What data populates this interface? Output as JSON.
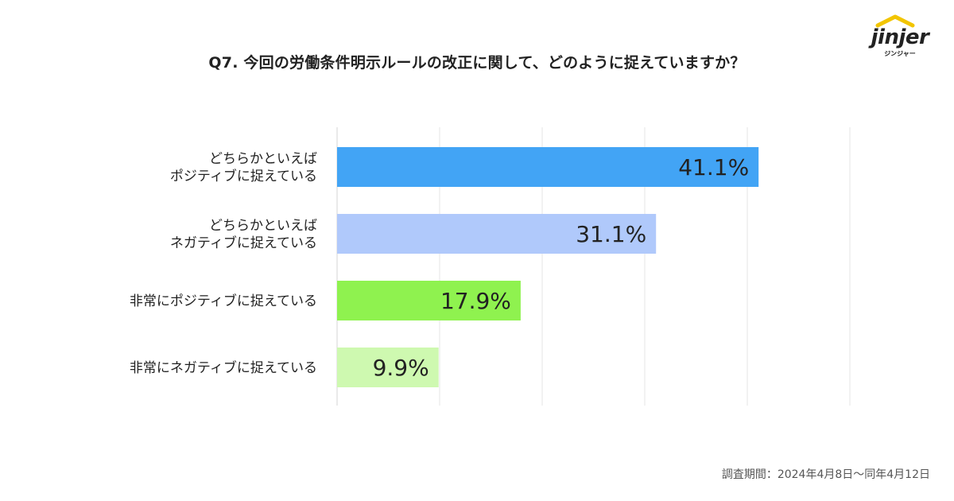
{
  "title": "Q7. 今回の労働条件明示ルールの改正に関して、どのように捉えていますか？",
  "logo": {
    "name": "jinjer",
    "sub": "ジンジャー"
  },
  "footer": "調査期間：2024年4月8日〜同年4月12日",
  "chart_data": {
    "type": "bar",
    "orientation": "horizontal",
    "title": "Q7. 今回の労働条件明示ルールの改正に関して、どのように捉えていますか？",
    "categories": [
      [
        "どちらかといえば",
        "ポジティブに捉えている"
      ],
      [
        "どちらかといえば",
        "ネガティブに捉えている"
      ],
      [
        "非常にポジティブに捉えている"
      ],
      [
        "非常にネガティブに捉えている"
      ]
    ],
    "values": [
      41.1,
      31.1,
      17.9,
      9.9
    ],
    "value_labels": [
      "41.1%",
      "31.1%",
      "17.9%",
      "9.9%"
    ],
    "colors": [
      "#42a4f5",
      "#b0c9fb",
      "#8ff24f",
      "#cef9b0"
    ],
    "xlim": [
      0,
      50
    ],
    "grid": true,
    "legend": "none"
  }
}
